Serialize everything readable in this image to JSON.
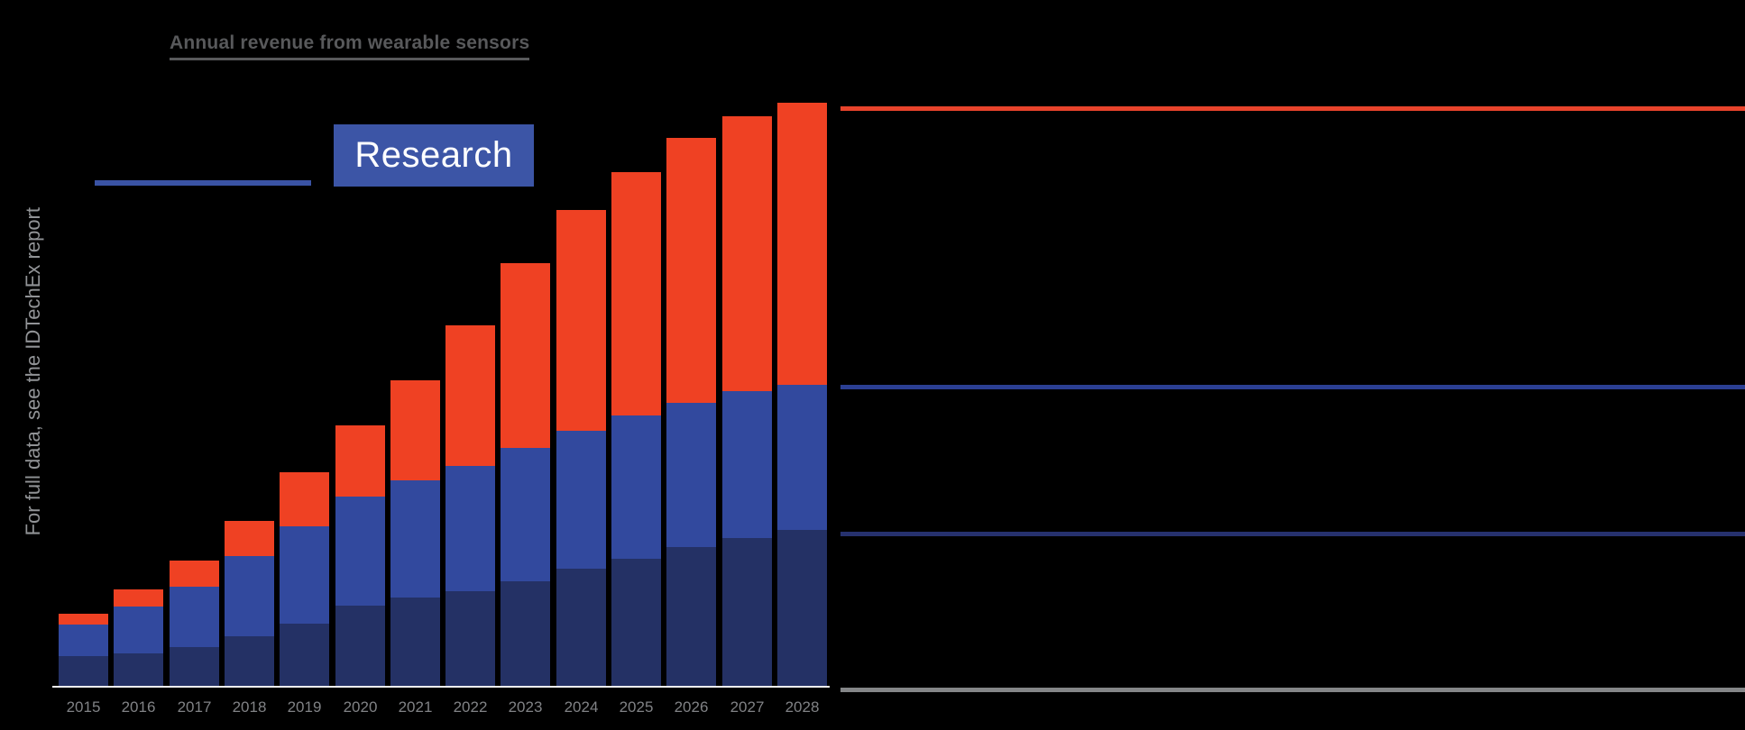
{
  "page": {
    "background": "#000000"
  },
  "header": {
    "title": "Annual revenue from wearable sensors",
    "title_color": "#58595B"
  },
  "logo": {
    "research_label": "Research",
    "box_color": "#3C55A6",
    "underline_color": "#3A53A4"
  },
  "note": {
    "text": "For full data, see the IDTechEx report",
    "color": "#919396"
  },
  "chart_data": {
    "type": "bar",
    "stacked": true,
    "title": "Annual revenue from wearable sensors",
    "categories": [
      "2015",
      "2016",
      "2017",
      "2018",
      "2019",
      "2020",
      "2021",
      "2022",
      "2023",
      "2024",
      "2025",
      "2026",
      "2027",
      "2028"
    ],
    "series": [
      {
        "name": "bottom-segment-navy",
        "color": "#243165",
        "values": [
          35,
          38,
          45,
          57,
          71,
          91,
          100,
          107,
          118,
          132,
          143,
          156,
          166,
          175
        ]
      },
      {
        "name": "middle-segment-blue",
        "color": "#32499E",
        "values": [
          35,
          52,
          67,
          89,
          108,
          121,
          130,
          139,
          148,
          153,
          159,
          160,
          163,
          161
        ]
      },
      {
        "name": "top-segment-red",
        "color": "#EF4123",
        "values": [
          12,
          19,
          29,
          39,
          60,
          79,
          111,
          156,
          205,
          245,
          270,
          294,
          305,
          313
        ]
      }
    ],
    "value_units": "relative height (y-axis scale not visible in image)",
    "xlabel": "",
    "ylabel": "",
    "ylim": [
      0,
      660
    ],
    "grid": false,
    "legend_labels_visible": false,
    "tick_color": "#808285",
    "axis_line_color": "#F2F2F2",
    "leader_lines": [
      {
        "name": "top-series-line",
        "color": "#E8432B",
        "anchor": "top_of_stack"
      },
      {
        "name": "middle-series-line",
        "color": "#2B3F93",
        "anchor": "blue_red_boundary"
      },
      {
        "name": "bottom-series-line",
        "color": "#26316E",
        "anchor": "navy_blue_boundary"
      },
      {
        "name": "baseline-line",
        "color": "#848688",
        "anchor": "baseline"
      }
    ]
  }
}
